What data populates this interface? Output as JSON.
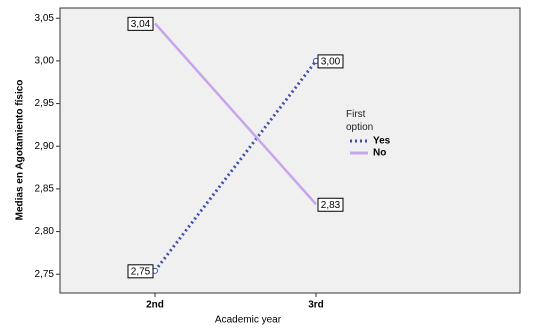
{
  "chart_data": {
    "type": "line",
    "x_label": "Academic year",
    "y_label": "Medias en Agotamiento físico",
    "legend_title": "First option",
    "categories": [
      "2nd",
      "3rd"
    ],
    "series": [
      {
        "name": "Yes",
        "color": "#3f4fa8",
        "style": "dotted",
        "marker": true,
        "values": [
          2.754,
          3.0
        ],
        "value_labels": [
          "2,75",
          "3,00"
        ]
      },
      {
        "name": "No",
        "color": "#c8a6ec",
        "style": "solid",
        "marker": false,
        "values": [
          3.044,
          2.832
        ],
        "value_labels": [
          "3,04",
          "2,83"
        ]
      }
    ],
    "ylim": [
      2.728,
      3.062
    ],
    "yticks": [
      {
        "value": 2.75,
        "label": "2,75"
      },
      {
        "value": 2.8,
        "label": "2,80"
      },
      {
        "value": 2.85,
        "label": "2,85"
      },
      {
        "value": 2.9,
        "label": "2,90"
      },
      {
        "value": 2.95,
        "label": "2,95"
      },
      {
        "value": 3.0,
        "label": "3,00"
      },
      {
        "value": 3.05,
        "label": "3,05"
      }
    ]
  }
}
